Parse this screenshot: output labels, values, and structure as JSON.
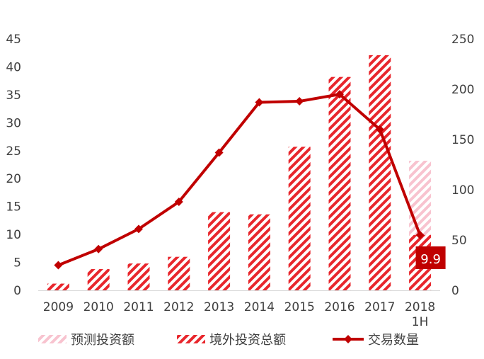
{
  "chart_data": {
    "type": "bar",
    "categories": [
      "2009",
      "2010",
      "2011",
      "2012",
      "2013",
      "2014",
      "2015",
      "2016",
      "2017",
      "2018\n1H"
    ],
    "category_labels": [
      [
        "2009"
      ],
      [
        "2010"
      ],
      [
        "2011"
      ],
      [
        "2012"
      ],
      [
        "2013"
      ],
      [
        "2014"
      ],
      [
        "2015"
      ],
      [
        "2016"
      ],
      [
        "2017"
      ],
      [
        "2018",
        "1H"
      ]
    ],
    "series": [
      {
        "name": "境外投资总额",
        "kind": "bar",
        "axis": "left",
        "pattern": "diagonal-stripes",
        "color": "#e8262c",
        "values": [
          1.2,
          3.8,
          4.8,
          6.0,
          14.0,
          13.6,
          25.7,
          38.2,
          42.1,
          9.9
        ]
      },
      {
        "name": "预测投资额",
        "kind": "bar",
        "axis": "left",
        "pattern": "diagonal-stripes",
        "color": "#f8c3cf",
        "values": [
          null,
          null,
          null,
          null,
          null,
          null,
          null,
          null,
          null,
          23.2
        ],
        "stacked_on": "境外投资总额"
      },
      {
        "name": "交易数量",
        "kind": "line",
        "axis": "right",
        "marker": "diamond",
        "color": "#c00000",
        "values": [
          25,
          41,
          61,
          88,
          137,
          187,
          188,
          195,
          160,
          55
        ]
      }
    ],
    "y_left": {
      "ylim": [
        0,
        45
      ],
      "ticks": [
        "0",
        "5",
        "10",
        "15",
        "20",
        "25",
        "30",
        "35",
        "40",
        "45"
      ]
    },
    "y_right": {
      "ylim": [
        0,
        250
      ],
      "ticks": [
        "0",
        "50",
        "100",
        "150",
        "200",
        "250"
      ]
    },
    "callout": {
      "text": "9.9",
      "category": "2018\n1H",
      "background": "#c00000"
    },
    "legend": {
      "position": "bottom",
      "items": [
        {
          "label": "预测投资额",
          "type": "pattern-box",
          "color": "#f8c3cf"
        },
        {
          "label": "境外投资总额",
          "type": "pattern-box",
          "color": "#e8262c"
        },
        {
          "label": "交易数量",
          "type": "line-marker",
          "color": "#c00000"
        }
      ]
    },
    "grid": false,
    "title": "",
    "xlabel": "",
    "ylabel": ""
  }
}
